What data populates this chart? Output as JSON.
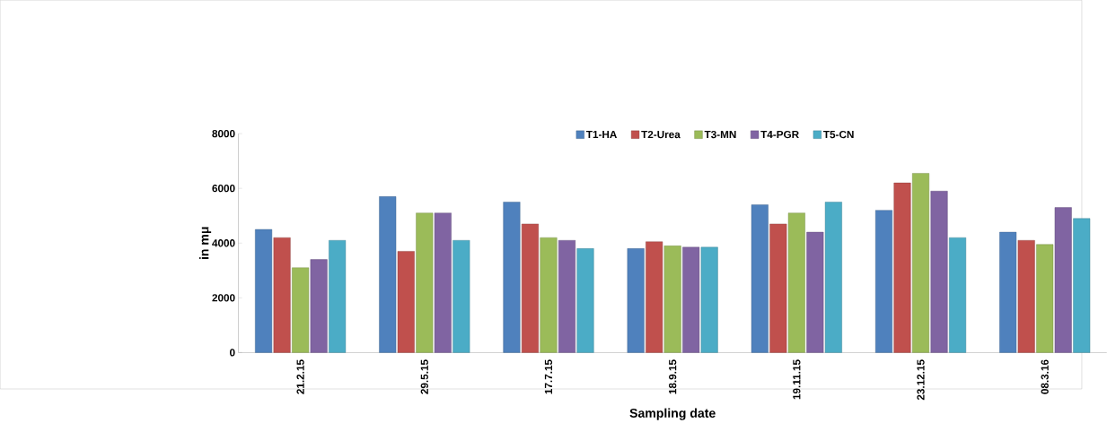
{
  "chart_data": {
    "type": "bar",
    "xlabel": "Sampling date",
    "ylabel": "in mμ",
    "categories": [
      "21.2.15",
      "29.5.15",
      "17.7.15",
      "18.9.15",
      "19.11.15",
      "23.12.15",
      "08.3.16"
    ],
    "series": [
      {
        "name": "T1-HA",
        "color": "#4f81bd",
        "values": [
          4500,
          5700,
          5500,
          3800,
          5400,
          5200,
          4400
        ]
      },
      {
        "name": "T2-Urea",
        "color": "#c0504d",
        "values": [
          4200,
          3700,
          4700,
          4050,
          4700,
          6200,
          4100
        ]
      },
      {
        "name": "T3-MN",
        "color": "#9bbb59",
        "values": [
          3100,
          5100,
          4200,
          3900,
          5100,
          6550,
          3950
        ]
      },
      {
        "name": "T4-PGR",
        "color": "#8064a2",
        "values": [
          3400,
          5100,
          4100,
          3850,
          4400,
          5900,
          5300
        ]
      },
      {
        "name": "T5-CN",
        "color": "#4bacc6",
        "values": [
          4100,
          4100,
          3800,
          3850,
          5500,
          4200,
          4900
        ]
      }
    ],
    "ylim": [
      0,
      8000
    ],
    "yticks": [
      0,
      2000,
      4000,
      6000,
      8000
    ],
    "legend": "top"
  }
}
